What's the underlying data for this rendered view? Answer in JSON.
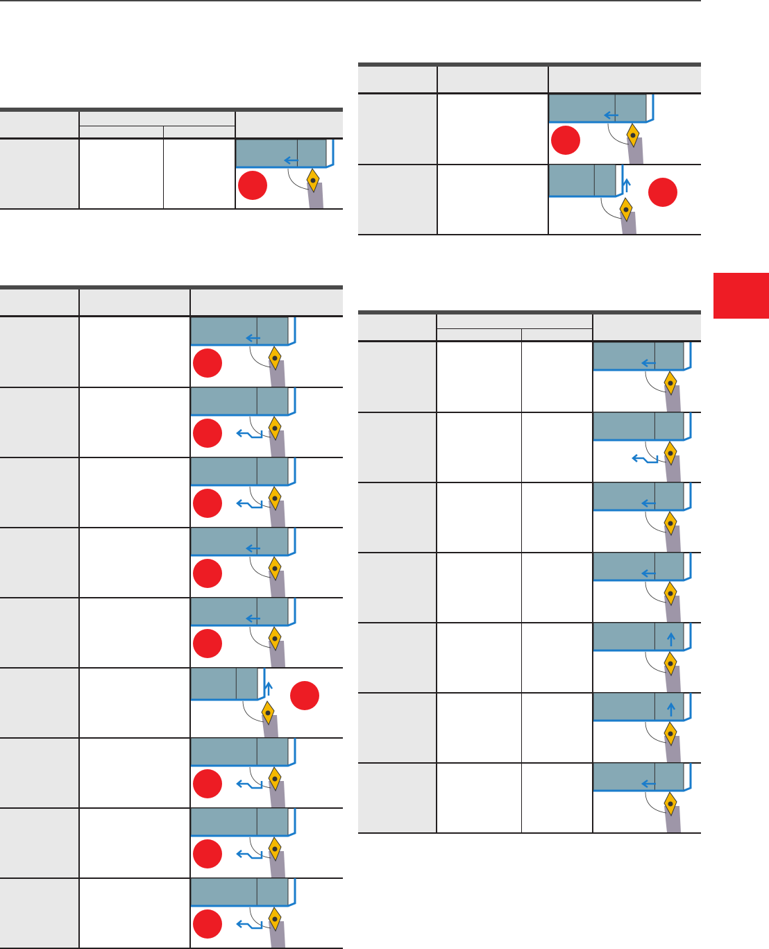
{
  "colors": {
    "rule": "#231f20",
    "header_bg": "#e8e8e8",
    "workpiece": "#86a9b5",
    "cut_edge": "#1a7ccb",
    "insert": "#f5b800",
    "shank": "#9e96a8",
    "marker": "#ed1c24",
    "section_tab": "#ee1c25"
  },
  "tables": [
    {
      "id": "a",
      "columns": 3,
      "sub_columns": 2,
      "rows": [
        {
          "arrow": "step",
          "circle": true,
          "tool": "bore"
        }
      ]
    },
    {
      "id": "b",
      "columns": 3,
      "rows": [
        {
          "arrow": "left",
          "circle": true,
          "tool": "double"
        },
        {
          "arrow": "profile",
          "circle": true,
          "tool": "diamond"
        },
        {
          "arrow": "profile",
          "circle": true,
          "tool": "vbottom"
        },
        {
          "arrow": "left",
          "circle": true,
          "tool": "square"
        },
        {
          "arrow": "left",
          "circle": true,
          "tool": "tri"
        },
        {
          "arrow": "up",
          "circle": true,
          "tool": "face"
        },
        {
          "arrow": "profile",
          "circle": true,
          "tool": "diamond"
        },
        {
          "arrow": "profile",
          "circle": true,
          "tool": "diamond"
        },
        {
          "arrow": "profile",
          "circle": true,
          "tool": "diamond"
        }
      ]
    },
    {
      "id": "c",
      "columns": 3,
      "rows": [
        {
          "arrow": "left",
          "circle": true,
          "tool": "vbottom"
        },
        {
          "arrow": "up",
          "circle": true,
          "tool": "face"
        }
      ]
    },
    {
      "id": "d",
      "columns": 4,
      "sub_columns": 2,
      "rows": [
        {
          "arrow": "left",
          "circle": false,
          "tool": "diamond"
        },
        {
          "arrow": "profile",
          "circle": false,
          "tool": "diamond"
        },
        {
          "arrow": "left",
          "circle": false,
          "tool": "diamond"
        },
        {
          "arrow": "left",
          "circle": false,
          "tool": "diamond"
        },
        {
          "arrow": "up",
          "circle": false,
          "tool": "diamond"
        },
        {
          "arrow": "up",
          "circle": false,
          "tool": "diamond"
        },
        {
          "arrow": "left",
          "circle": false,
          "tool": "diamond"
        }
      ]
    }
  ]
}
